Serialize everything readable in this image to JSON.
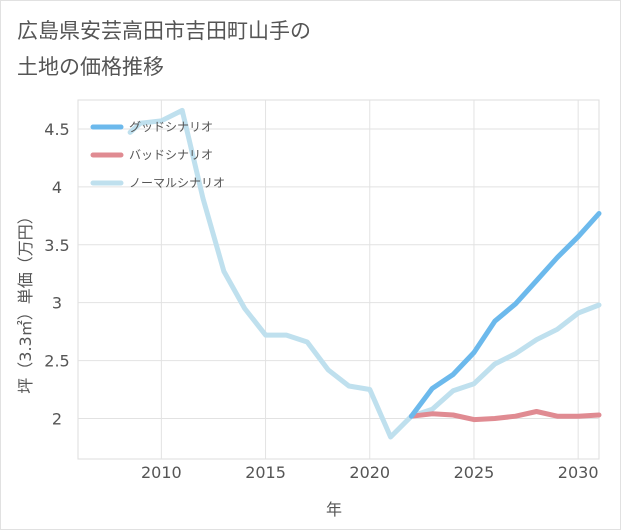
{
  "page": {
    "title_line1": "広島県安芸高田市吉田町山手の",
    "title_line2": "土地の価格推移"
  },
  "chart_data": {
    "type": "line",
    "title": "広島県安芸高田市吉田町山手の土地の価格推移",
    "xlabel": "年",
    "ylabel": "坪（3.3㎡）単価（万円）",
    "xlim": [
      2006,
      2031
    ],
    "ylim": [
      1.65,
      4.75
    ],
    "xticks": [
      2010,
      2015,
      2020,
      2025,
      2030
    ],
    "yticks": [
      2,
      2.5,
      3,
      3.5,
      4,
      4.5
    ],
    "ytick_labels": [
      "2",
      "2.5",
      "3",
      "3.5",
      "4",
      "4.5"
    ],
    "grid": true,
    "legend_position": "top-left",
    "series": [
      {
        "name": "グッドシナリオ",
        "color": "#6cb9ec",
        "x": [
          2022,
          2023,
          2024,
          2025,
          2026,
          2027,
          2028,
          2029,
          2030,
          2031
        ],
        "y": [
          2.02,
          2.26,
          2.38,
          2.57,
          2.84,
          2.99,
          3.19,
          3.39,
          3.57,
          3.77
        ]
      },
      {
        "name": "バッドシナリオ",
        "color": "#e08b92",
        "x": [
          2022,
          2023,
          2024,
          2025,
          2026,
          2027,
          2028,
          2029,
          2030,
          2031
        ],
        "y": [
          2.02,
          2.04,
          2.03,
          1.99,
          2.0,
          2.02,
          2.06,
          2.02,
          2.02,
          2.03
        ]
      },
      {
        "name": "ノーマルシナリオ",
        "color": "#bfe0ee",
        "x": [
          2008.5,
          2009,
          2010,
          2011,
          2012,
          2013,
          2014,
          2015,
          2016,
          2017,
          2018,
          2019,
          2020,
          2021,
          2022,
          2023,
          2024,
          2025,
          2026,
          2027,
          2028,
          2029,
          2030,
          2031
        ],
        "y": [
          4.47,
          4.55,
          4.57,
          4.66,
          3.9,
          3.27,
          2.95,
          2.72,
          2.72,
          2.66,
          2.42,
          2.28,
          2.25,
          1.84,
          2.02,
          2.08,
          2.24,
          2.3,
          2.47,
          2.56,
          2.68,
          2.77,
          2.91,
          2.98
        ]
      }
    ]
  }
}
